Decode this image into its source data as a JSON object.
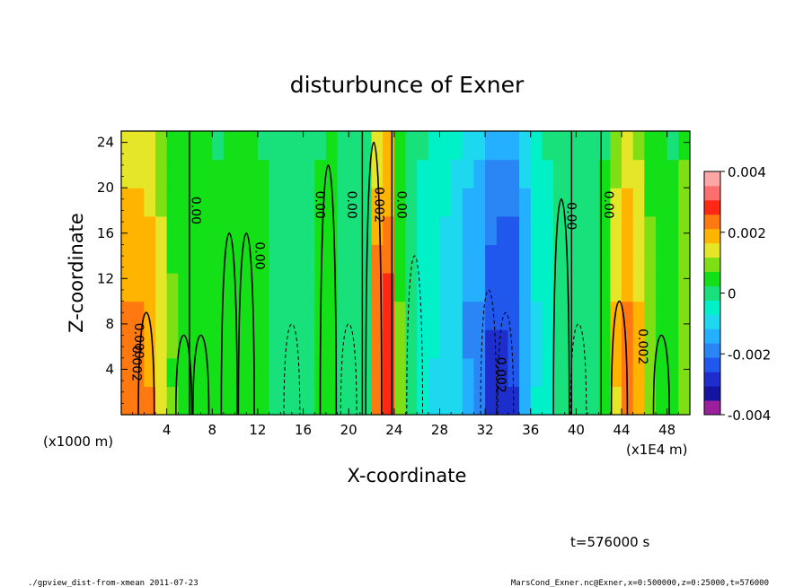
{
  "chart_data": {
    "type": "heatmap",
    "title": "disturbunce of Exner",
    "xlabel": "X-coordinate",
    "ylabel": "Z-coordinate",
    "x_unit_left": "(x1000 m)",
    "x_unit_right": "(x1E4 m)",
    "x_ticks": [
      "4",
      "8",
      "12",
      "16",
      "20",
      "24",
      "28",
      "32",
      "36",
      "40",
      "44",
      "48"
    ],
    "x_tick_values": [
      4,
      8,
      12,
      16,
      20,
      24,
      28,
      32,
      36,
      40,
      44,
      48
    ],
    "y_ticks": [
      "4",
      "8",
      "12",
      "16",
      "20",
      "24"
    ],
    "y_tick_values": [
      4,
      8,
      12,
      16,
      20,
      24
    ],
    "xlim": [
      0,
      50
    ],
    "ylim": [
      0,
      25
    ],
    "colorbar": {
      "ticks": [
        "0.004",
        "0.002",
        "0",
        "-0.002",
        "-0.004"
      ],
      "tick_values": [
        0.004,
        0.002,
        0,
        -0.002,
        -0.004
      ],
      "range": [
        -0.004,
        0.004
      ],
      "levels": 16,
      "colors": [
        "#9b209b",
        "#1414a0",
        "#1e2ecc",
        "#2058ee",
        "#2a86f4",
        "#24b0ff",
        "#1ed8f0",
        "#00f0c8",
        "#18e07a",
        "#14e018",
        "#7ee014",
        "#e6e628",
        "#ffb400",
        "#ff7810",
        "#ff2814",
        "#ff6e6e",
        "#ffa6a6"
      ]
    },
    "contour_labels": [
      "0.000",
      "0.00",
      "0.00",
      "0.00",
      "0.00",
      "0.002",
      "0.00",
      "0.00",
      "0.00",
      "0.002",
      "0.002",
      "0.002"
    ],
    "columns": {
      "x": [
        0,
        1,
        2,
        3,
        4,
        5,
        6,
        7,
        8,
        9,
        10,
        11,
        12,
        13,
        14,
        15,
        16,
        17,
        18,
        19,
        20,
        21,
        22,
        23,
        24,
        25,
        26,
        27,
        28,
        29,
        30,
        31,
        32,
        33,
        34,
        35,
        36,
        37,
        38,
        39,
        40,
        41,
        42,
        43,
        44,
        45,
        46,
        47,
        48,
        49,
        50
      ],
      "value": [
        0.0024,
        0.0026,
        0.0022,
        0.0016,
        0.0008,
        0.0006,
        0.0005,
        0.0005,
        0.0004,
        0.0005,
        0.0006,
        0.0005,
        0.0004,
        0.0002,
        0.0001,
        0.0,
        -0.0002,
        0.0004,
        0.0006,
        0.0,
        0.0,
        0.0,
        0.0026,
        0.0032,
        0.0008,
        -0.0002,
        -0.0004,
        -0.0008,
        -0.001,
        -0.0012,
        -0.0018,
        -0.002,
        -0.0028,
        -0.003,
        -0.0028,
        -0.0018,
        -0.0008,
        -0.0004,
        0.0,
        0.0002,
        0.0,
        0.0002,
        0.0004,
        0.0018,
        0.0024,
        0.002,
        0.001,
        0.0006,
        0.0004,
        0.0012,
        0.0018
      ]
    }
  },
  "annotations": {
    "time": "t=576000 s",
    "footer_left": "./gpview_dist-from-xmean  2011-07-23",
    "footer_right": "MarsCond_Exner.nc@Exner,x=0:500000,z=0:25000,t=576000"
  }
}
